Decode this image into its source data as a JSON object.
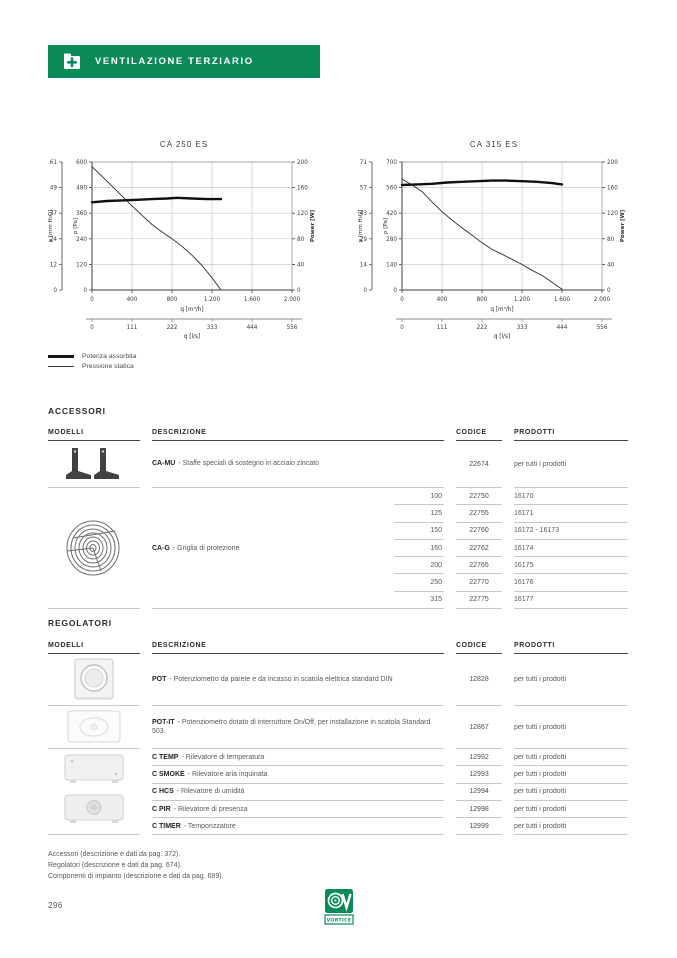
{
  "page": {
    "number": "296"
  },
  "banner": {
    "title": "VENTILAZIONE TERZIARIO",
    "color": "#0a8a57"
  },
  "legend": [
    {
      "label": "Potenza assorbita",
      "weight": "thick"
    },
    {
      "label": "Pressione statica",
      "weight": "thin"
    }
  ],
  "chart_data": [
    {
      "type": "line",
      "title": "CA 250 ES",
      "xlabel": "q [m³/h]",
      "xlabel2": "q [l/s]",
      "ylabel_left_outer": "p [mm H₂O]",
      "ylabel_left": "p [Pa]",
      "ylabel_right": "Power [W]",
      "xlim": [
        0,
        2000
      ],
      "ylim_pa": [
        0,
        600
      ],
      "ylim_power": [
        0,
        200
      ],
      "x_ticks": [
        "0",
        "400",
        "800",
        "1.200",
        "1.600",
        "2.000"
      ],
      "x2_ticks": [
        "0",
        "111",
        "222",
        "333",
        "444",
        "556"
      ],
      "y_left_outer_ticks": [
        "0",
        "12",
        "24",
        "37",
        "49",
        "61"
      ],
      "y_left_ticks": [
        "0",
        "120",
        "240",
        "360",
        "480",
        "600"
      ],
      "y_right_ticks": [
        "0",
        "40",
        "80",
        "120",
        "160",
        "200"
      ],
      "grid": true,
      "series": [
        {
          "name": "Pressione statica",
          "axis": "pa",
          "style": "thin",
          "points": [
            [
              0,
              578
            ],
            [
              100,
              533
            ],
            [
              200,
              487
            ],
            [
              300,
              440
            ],
            [
              400,
              394
            ],
            [
              500,
              350
            ],
            [
              600,
              307
            ],
            [
              700,
              272
            ],
            [
              800,
              240
            ],
            [
              900,
              205
            ],
            [
              1000,
              163
            ],
            [
              1100,
              115
            ],
            [
              1200,
              57
            ],
            [
              1290,
              0
            ]
          ]
        },
        {
          "name": "Potenza assorbita",
          "axis": "power",
          "style": "thick",
          "points": [
            [
              0,
              137
            ],
            [
              150,
              139
            ],
            [
              300,
              140
            ],
            [
              450,
              141
            ],
            [
              600,
              142
            ],
            [
              750,
              143
            ],
            [
              850,
              144
            ],
            [
              1000,
              143
            ],
            [
              1150,
              142
            ],
            [
              1290,
              142
            ]
          ]
        }
      ]
    },
    {
      "type": "line",
      "title": "CA 315 ES",
      "xlabel": "q [m³/h]",
      "xlabel2": "q [l/s]",
      "ylabel_left_outer": "p [mm H₂O]",
      "ylabel_left": "p [Pa]",
      "ylabel_right": "Power [W]",
      "xlim": [
        0,
        2000
      ],
      "ylim_pa": [
        0,
        700
      ],
      "ylim_power": [
        0,
        200
      ],
      "x_ticks": [
        "0",
        "400",
        "800",
        "1.200",
        "1.600",
        "2.000"
      ],
      "x2_ticks": [
        "0",
        "111",
        "222",
        "333",
        "444",
        "556"
      ],
      "y_left_outer_ticks": [
        "0",
        "14",
        "29",
        "43",
        "57",
        "71"
      ],
      "y_left_ticks": [
        "0",
        "140",
        "280",
        "420",
        "560",
        "700"
      ],
      "y_right_ticks": [
        "0",
        "40",
        "80",
        "120",
        "160",
        "200"
      ],
      "grid": true,
      "series": [
        {
          "name": "Pressione statica",
          "axis": "pa",
          "style": "thin",
          "points": [
            [
              0,
              607
            ],
            [
              100,
              575
            ],
            [
              200,
              538
            ],
            [
              300,
              482
            ],
            [
              400,
              428
            ],
            [
              500,
              382
            ],
            [
              600,
              340
            ],
            [
              700,
              300
            ],
            [
              800,
              258
            ],
            [
              900,
              222
            ],
            [
              1000,
              196
            ],
            [
              1100,
              168
            ],
            [
              1200,
              140
            ],
            [
              1300,
              108
            ],
            [
              1400,
              80
            ],
            [
              1500,
              42
            ],
            [
              1600,
              4
            ]
          ]
        },
        {
          "name": "Potenza assorbita",
          "axis": "power",
          "style": "thick",
          "points": [
            [
              0,
              164
            ],
            [
              150,
              165
            ],
            [
              300,
              166
            ],
            [
              450,
              168
            ],
            [
              600,
              169
            ],
            [
              750,
              170
            ],
            [
              900,
              171
            ],
            [
              1050,
              171
            ],
            [
              1200,
              170
            ],
            [
              1350,
              169
            ],
            [
              1500,
              167
            ],
            [
              1600,
              165
            ]
          ]
        }
      ]
    }
  ],
  "accessori": {
    "heading": "ACCESSORI",
    "headers": {
      "modelli": "MODELLI",
      "descrizione": "DESCRIZIONE",
      "codice": "CODICE",
      "prodotti": "PRODOTTI"
    },
    "camu": {
      "model": "CA-MU",
      "description": "- Staffe speciali di sostegno in acciaio zincato",
      "codice": "22674",
      "prodotti": "per tutti i prodotti"
    },
    "cag": {
      "model": "CA-G",
      "description": "- Griglia di protezione",
      "rows": [
        {
          "size": "100",
          "codice": "22750",
          "prodotti": "16170"
        },
        {
          "size": "125",
          "codice": "22755",
          "prodotti": "16171"
        },
        {
          "size": "150",
          "codice": "22760",
          "prodotti": "16172 - 16173"
        },
        {
          "size": "160",
          "codice": "22762",
          "prodotti": "16174"
        },
        {
          "size": "200",
          "codice": "22765",
          "prodotti": "16175"
        },
        {
          "size": "250",
          "codice": "22770",
          "prodotti": "16176"
        },
        {
          "size": "315",
          "codice": "22775",
          "prodotti": "16177"
        }
      ]
    }
  },
  "regolatori": {
    "heading": "REGOLATORI",
    "headers": {
      "modelli": "MODELLI",
      "descrizione": "DESCRIZIONE",
      "codice": "CODICE",
      "prodotti": "PRODOTTI"
    },
    "pot": {
      "model": "POT",
      "description": "- Potenziometro da parete e da incasso in scatola elettrica standard DIN",
      "codice": "12828",
      "prodotti": "per tutti i prodotti"
    },
    "potit": {
      "model": "POT-IT",
      "description": "- Potenziometro dotato di interruttore On/Off, per installazione in scatola Standard 503.",
      "codice": "12867",
      "prodotti": "per tutti i prodotti"
    },
    "c_rows": [
      {
        "model": "C TEMP",
        "description": "- Rilevatore di temperatura",
        "codice": "12992",
        "prodotti": "per tutti i prodotti"
      },
      {
        "model": "C SMOKE",
        "description": "- Rilevatore aria inquinata",
        "codice": "12993",
        "prodotti": "per tutti i prodotti"
      },
      {
        "model": "C HCS",
        "description": "- Rilevatore di umidità",
        "codice": "12994",
        "prodotti": "per tutti i prodotti"
      },
      {
        "model": "C PIR",
        "description": "- Rilevatore di presenza",
        "codice": "12998",
        "prodotti": "per tutti i prodotti"
      },
      {
        "model": "C TIMER",
        "description": "- Temporizzatore",
        "codice": "12999",
        "prodotti": "per tutti i prodotti"
      }
    ]
  },
  "footnotes": [
    "Accessori (descrizione e dati da pag. 372).",
    "Regolatori (descrizione e dati da pag. 674).",
    "Componenti di impianto (descrizione e dati da pag. 689)."
  ],
  "logo": {
    "text": "VORTICE"
  }
}
